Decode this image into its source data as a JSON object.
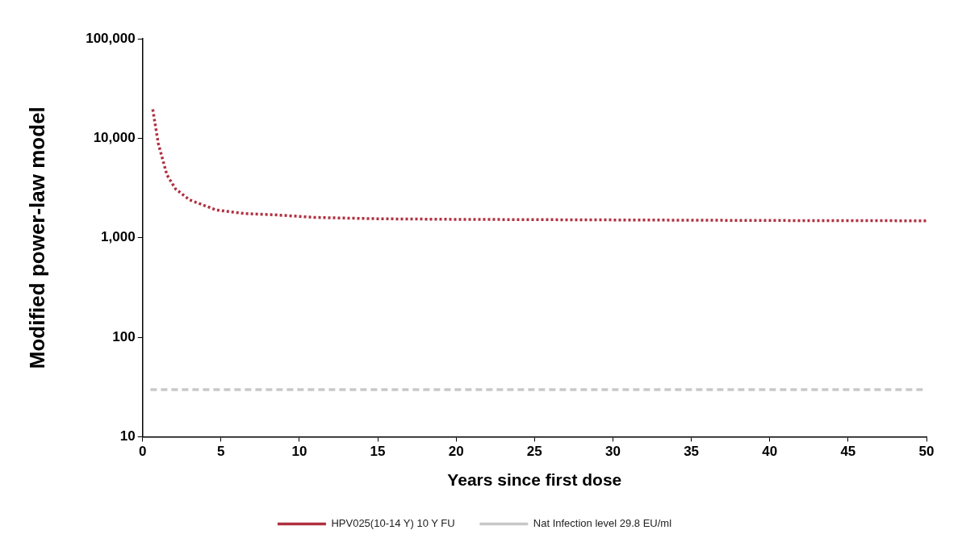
{
  "chart_data": {
    "type": "line",
    "xlabel": "Years since first dose",
    "ylabel": "Modified power-law model",
    "log": "y",
    "grid": false,
    "legend": "bottom",
    "marker": "none",
    "xlim": [
      0,
      50
    ],
    "xticks": [
      0,
      5,
      10,
      15,
      20,
      25,
      30,
      35,
      40,
      45,
      50
    ],
    "ylim": [
      10,
      100000
    ],
    "yticks": [
      {
        "value": 10,
        "label": "10"
      },
      {
        "value": 100,
        "label": "100"
      },
      {
        "value": 1000,
        "label": "1,000"
      },
      {
        "value": 10000,
        "label": "10,000"
      },
      {
        "value": 100000,
        "label": "100,000"
      }
    ],
    "series": [
      {
        "name": "HPV025(10-14 Y) 10 Y FU",
        "color": "#b03040",
        "line_style": "dotted",
        "x": [
          0.65,
          1,
          1.55,
          2.1,
          3,
          4.7,
          6.5,
          8.4,
          11,
          15,
          20,
          30,
          40,
          50
        ],
        "values": [
          19500,
          8900,
          4300,
          3100,
          2400,
          1900,
          1750,
          1700,
          1600,
          1550,
          1530,
          1510,
          1490,
          1480
        ]
      },
      {
        "name": "Nat Infection level 29.8 EU/ml",
        "color": "#c8c8c8",
        "line_style": "dashed",
        "x": [
          0.5,
          50
        ],
        "values": [
          29.8,
          29.8
        ]
      }
    ]
  }
}
